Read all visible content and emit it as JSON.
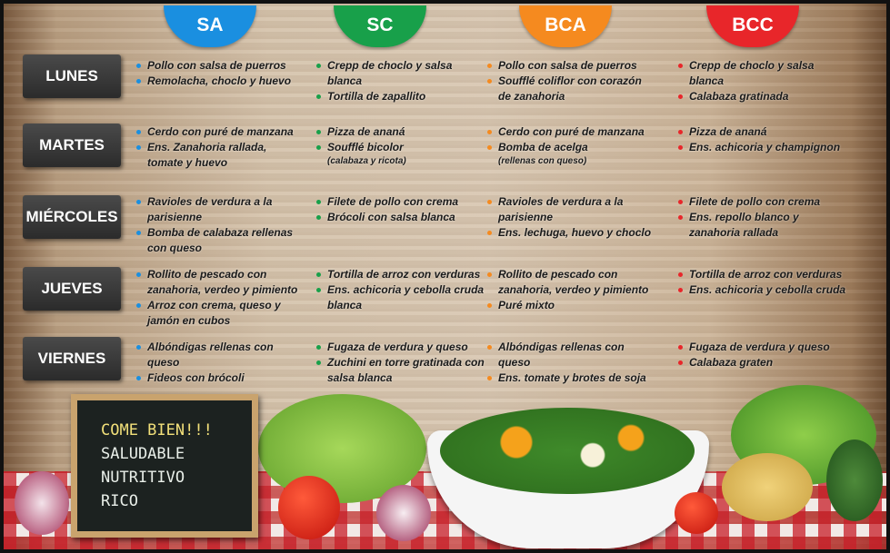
{
  "columns": [
    {
      "label": "SA",
      "color": "#1a8fe0"
    },
    {
      "label": "SC",
      "color": "#18a04a"
    },
    {
      "label": "BCA",
      "color": "#f58a1f"
    },
    {
      "label": "BCC",
      "color": "#e8262a"
    }
  ],
  "rows": [
    {
      "day": "LUNES",
      "cells": [
        [
          {
            "text": "Pollo con salsa de puerros"
          },
          {
            "text": "Remolacha, choclo y huevo"
          }
        ],
        [
          {
            "text": "Crepp de choclo y salsa blanca"
          },
          {
            "text": "Tortilla de zapallito"
          }
        ],
        [
          {
            "text": "Pollo con salsa de puerros"
          },
          {
            "text": "Soufflé coliflor con corazón de  zanahoria"
          }
        ],
        [
          {
            "text": "Crepp de choclo y salsa blanca"
          },
          {
            "text": "Calabaza gratinada"
          }
        ]
      ]
    },
    {
      "day": "MARTES",
      "cells": [
        [
          {
            "text": "Cerdo con puré de manzana"
          },
          {
            "text": "Ens. Zanahoria rallada, tomate y huevo"
          }
        ],
        [
          {
            "text": "Pizza de ananá"
          },
          {
            "text": "Soufflé bicolor",
            "note": "(calabaza y ricota)"
          }
        ],
        [
          {
            "text": "Cerdo con puré de manzana"
          },
          {
            "text": "Bomba de acelga",
            "note": "(rellenas con queso)"
          }
        ],
        [
          {
            "text": "Pizza de ananá"
          },
          {
            "text": "Ens. achicoria y champignon"
          }
        ]
      ]
    },
    {
      "day": "MIÉRCOLES",
      "cells": [
        [
          {
            "text": "Ravioles de verdura a la parisienne"
          },
          {
            "text": "Bomba de calabaza rellenas con queso"
          }
        ],
        [
          {
            "text": "Filete de pollo con crema"
          },
          {
            "text": "Brócoli con salsa blanca"
          }
        ],
        [
          {
            "text": "Ravioles de verdura a la parisienne"
          },
          {
            "text": "Ens. lechuga, huevo y choclo"
          }
        ],
        [
          {
            "text": "Filete de pollo con crema"
          },
          {
            "text": "Ens. repollo blanco y zanahoria rallada"
          }
        ]
      ]
    },
    {
      "day": "JUEVES",
      "cells": [
        [
          {
            "text": "Rollito de pescado con zanahoria, verdeo y pimiento"
          },
          {
            "text": "Arroz con crema, queso y jamón en cubos"
          }
        ],
        [
          {
            "text": "Tortilla de arroz con verduras"
          },
          {
            "text": "Ens. achicoria y cebolla cruda blanca"
          }
        ],
        [
          {
            "text": "Rollito de pescado con zanahoria, verdeo y pimiento"
          },
          {
            "text": "Puré mixto"
          }
        ],
        [
          {
            "text": "Tortilla de arroz con verduras"
          },
          {
            "text": "Ens. achicoria y cebolla cruda"
          }
        ]
      ]
    },
    {
      "day": "VIERNES",
      "cells": [
        [
          {
            "text": "Albóndigas rellenas con queso"
          },
          {
            "text": "Fideos con brócoli"
          }
        ],
        [
          {
            "text": "Fugaza de verdura y queso"
          },
          {
            "text": "Zuchini en torre gratinada con salsa blanca"
          }
        ],
        [
          {
            "text": "Albóndigas rellenas con queso"
          },
          {
            "text": "Ens. tomate y brotes de soja"
          }
        ],
        [
          {
            "text": "Fugaza de verdura y queso"
          },
          {
            "text": "Calabaza graten"
          }
        ]
      ]
    }
  ],
  "chalkboard": [
    "COME BIEN!!!",
    "SALUDABLE",
    "NUTRITIVO",
    "RICO"
  ]
}
